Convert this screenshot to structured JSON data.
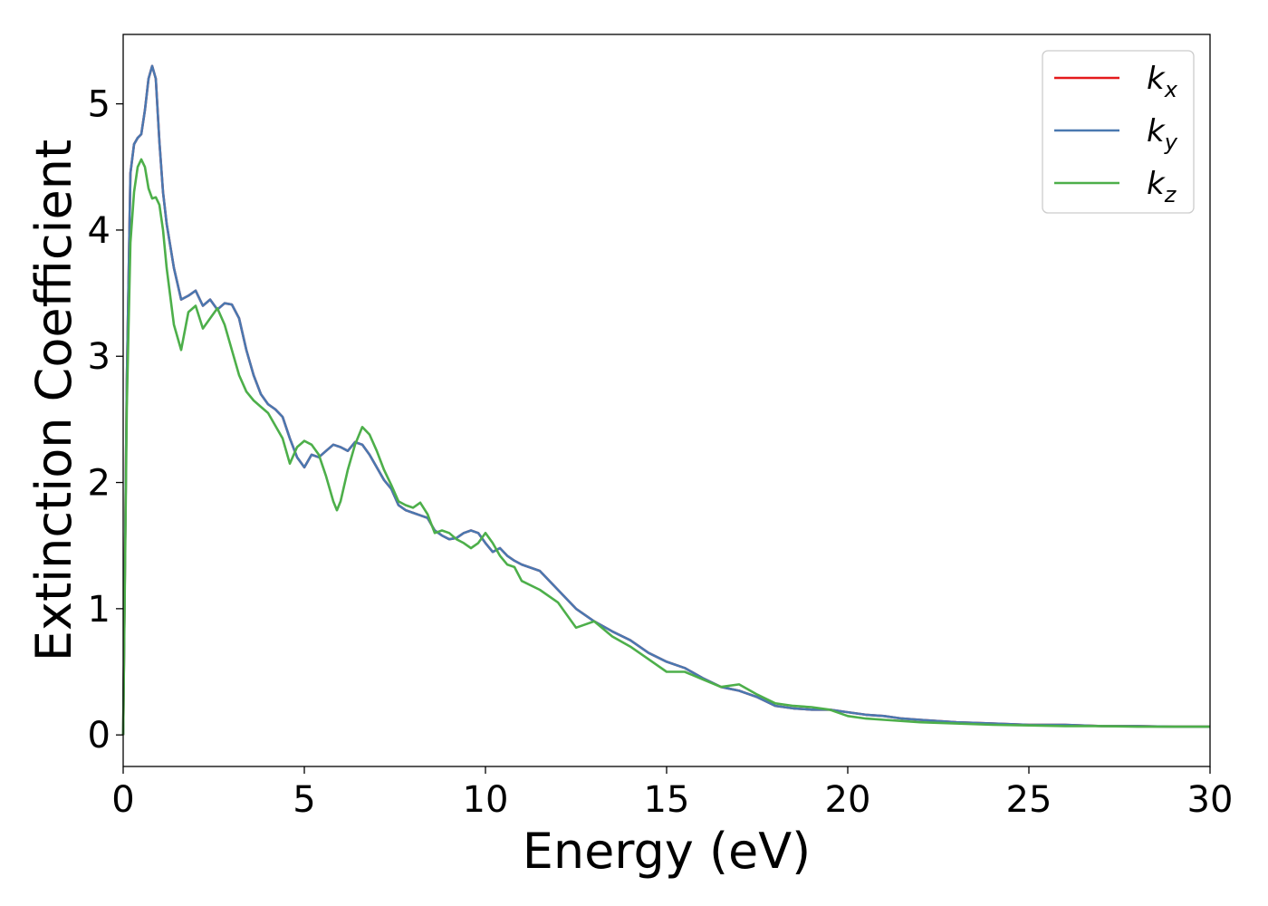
{
  "chart_data": {
    "type": "line",
    "title": "",
    "xlabel": "Energy (eV)",
    "ylabel": "Extinction Coefficient",
    "xlim": [
      0,
      30
    ],
    "ylim": [
      -0.25,
      5.55
    ],
    "xticks": [
      0,
      5,
      10,
      15,
      20,
      25,
      30
    ],
    "yticks": [
      0,
      1,
      2,
      3,
      4,
      5
    ],
    "grid": false,
    "legend_position": "top-right",
    "series": [
      {
        "name": "k",
        "subscript": "x",
        "color": "#e41a1c",
        "x": [
          0,
          0.1,
          0.2,
          0.3,
          0.4,
          0.5,
          0.6,
          0.7,
          0.8,
          0.9,
          1.0,
          1.1,
          1.2,
          1.4,
          1.6,
          1.8,
          2.0,
          2.2,
          2.4,
          2.6,
          2.8,
          3.0,
          3.2,
          3.4,
          3.6,
          3.8,
          4.0,
          4.2,
          4.4,
          4.6,
          4.8,
          5.0,
          5.2,
          5.4,
          5.6,
          5.8,
          6.0,
          6.2,
          6.4,
          6.6,
          6.8,
          7.0,
          7.2,
          7.4,
          7.6,
          7.8,
          8.0,
          8.2,
          8.4,
          8.6,
          8.8,
          9.0,
          9.2,
          9.4,
          9.6,
          9.8,
          10.0,
          10.2,
          10.4,
          10.6,
          10.8,
          11.0,
          11.5,
          12.0,
          12.5,
          13.0,
          13.5,
          14.0,
          14.5,
          15.0,
          15.5,
          16.0,
          16.5,
          17.0,
          17.5,
          18.0,
          18.5,
          19.0,
          19.5,
          20.0,
          20.5,
          21.0,
          21.5,
          22.0,
          23.0,
          24.0,
          25.0,
          26.0,
          27.0,
          28.0,
          29.0,
          30.0
        ],
        "y": [
          0.0,
          2.8,
          4.45,
          4.68,
          4.73,
          4.76,
          4.95,
          5.2,
          5.3,
          5.2,
          4.7,
          4.3,
          4.05,
          3.7,
          3.45,
          3.48,
          3.52,
          3.4,
          3.45,
          3.37,
          3.42,
          3.41,
          3.3,
          3.05,
          2.85,
          2.7,
          2.62,
          2.58,
          2.52,
          2.35,
          2.2,
          2.12,
          2.22,
          2.2,
          2.25,
          2.3,
          2.28,
          2.25,
          2.32,
          2.3,
          2.22,
          2.12,
          2.02,
          1.95,
          1.82,
          1.78,
          1.76,
          1.74,
          1.72,
          1.62,
          1.58,
          1.55,
          1.56,
          1.6,
          1.62,
          1.6,
          1.52,
          1.45,
          1.48,
          1.42,
          1.38,
          1.35,
          1.3,
          1.15,
          1.0,
          0.9,
          0.82,
          0.75,
          0.65,
          0.58,
          0.53,
          0.45,
          0.38,
          0.35,
          0.3,
          0.23,
          0.21,
          0.2,
          0.2,
          0.18,
          0.16,
          0.15,
          0.13,
          0.12,
          0.1,
          0.09,
          0.08,
          0.08,
          0.07,
          0.07,
          0.065,
          0.065
        ]
      },
      {
        "name": "k",
        "subscript": "y",
        "color": "#4a78b0",
        "x": [
          0,
          0.1,
          0.2,
          0.3,
          0.4,
          0.5,
          0.6,
          0.7,
          0.8,
          0.9,
          1.0,
          1.1,
          1.2,
          1.4,
          1.6,
          1.8,
          2.0,
          2.2,
          2.4,
          2.6,
          2.8,
          3.0,
          3.2,
          3.4,
          3.6,
          3.8,
          4.0,
          4.2,
          4.4,
          4.6,
          4.8,
          5.0,
          5.2,
          5.4,
          5.6,
          5.8,
          6.0,
          6.2,
          6.4,
          6.6,
          6.8,
          7.0,
          7.2,
          7.4,
          7.6,
          7.8,
          8.0,
          8.2,
          8.4,
          8.6,
          8.8,
          9.0,
          9.2,
          9.4,
          9.6,
          9.8,
          10.0,
          10.2,
          10.4,
          10.6,
          10.8,
          11.0,
          11.5,
          12.0,
          12.5,
          13.0,
          13.5,
          14.0,
          14.5,
          15.0,
          15.5,
          16.0,
          16.5,
          17.0,
          17.5,
          18.0,
          18.5,
          19.0,
          19.5,
          20.0,
          20.5,
          21.0,
          21.5,
          22.0,
          23.0,
          24.0,
          25.0,
          26.0,
          27.0,
          28.0,
          29.0,
          30.0
        ],
        "y": [
          0.0,
          2.8,
          4.45,
          4.68,
          4.73,
          4.76,
          4.95,
          5.2,
          5.3,
          5.2,
          4.7,
          4.3,
          4.05,
          3.7,
          3.45,
          3.48,
          3.52,
          3.4,
          3.45,
          3.37,
          3.42,
          3.41,
          3.3,
          3.05,
          2.85,
          2.7,
          2.62,
          2.58,
          2.52,
          2.35,
          2.2,
          2.12,
          2.22,
          2.2,
          2.25,
          2.3,
          2.28,
          2.25,
          2.32,
          2.3,
          2.22,
          2.12,
          2.02,
          1.95,
          1.82,
          1.78,
          1.76,
          1.74,
          1.72,
          1.62,
          1.58,
          1.55,
          1.56,
          1.6,
          1.62,
          1.6,
          1.52,
          1.45,
          1.48,
          1.42,
          1.38,
          1.35,
          1.3,
          1.15,
          1.0,
          0.9,
          0.82,
          0.75,
          0.65,
          0.58,
          0.53,
          0.45,
          0.38,
          0.35,
          0.3,
          0.23,
          0.21,
          0.2,
          0.2,
          0.18,
          0.16,
          0.15,
          0.13,
          0.12,
          0.1,
          0.09,
          0.08,
          0.08,
          0.07,
          0.07,
          0.065,
          0.065
        ]
      },
      {
        "name": "k",
        "subscript": "z",
        "color": "#4daf4a",
        "x": [
          0,
          0.1,
          0.2,
          0.3,
          0.4,
          0.5,
          0.6,
          0.7,
          0.8,
          0.9,
          1.0,
          1.1,
          1.2,
          1.4,
          1.6,
          1.8,
          2.0,
          2.2,
          2.4,
          2.6,
          2.8,
          3.0,
          3.2,
          3.4,
          3.6,
          3.8,
          4.0,
          4.2,
          4.4,
          4.6,
          4.8,
          5.0,
          5.2,
          5.4,
          5.6,
          5.8,
          5.9,
          6.0,
          6.2,
          6.4,
          6.6,
          6.8,
          7.0,
          7.2,
          7.4,
          7.6,
          7.8,
          8.0,
          8.2,
          8.4,
          8.6,
          8.8,
          9.0,
          9.2,
          9.4,
          9.6,
          9.8,
          10.0,
          10.2,
          10.4,
          10.6,
          10.8,
          11.0,
          11.5,
          12.0,
          12.5,
          13.0,
          13.5,
          14.0,
          14.5,
          15.0,
          15.5,
          16.0,
          16.5,
          17.0,
          17.5,
          18.0,
          18.5,
          19.0,
          19.5,
          20.0,
          20.5,
          21.0,
          21.5,
          22.0,
          23.0,
          24.0,
          25.0,
          26.0,
          27.0,
          28.0,
          29.0,
          30.0
        ],
        "y": [
          0.0,
          2.6,
          3.9,
          4.3,
          4.5,
          4.56,
          4.5,
          4.33,
          4.25,
          4.26,
          4.2,
          4.0,
          3.7,
          3.25,
          3.05,
          3.35,
          3.4,
          3.22,
          3.3,
          3.38,
          3.25,
          3.05,
          2.85,
          2.72,
          2.65,
          2.6,
          2.55,
          2.45,
          2.35,
          2.15,
          2.28,
          2.33,
          2.3,
          2.22,
          2.05,
          1.85,
          1.78,
          1.85,
          2.1,
          2.3,
          2.44,
          2.38,
          2.25,
          2.1,
          1.98,
          1.85,
          1.82,
          1.8,
          1.84,
          1.75,
          1.6,
          1.62,
          1.6,
          1.55,
          1.52,
          1.48,
          1.52,
          1.6,
          1.52,
          1.42,
          1.35,
          1.33,
          1.22,
          1.15,
          1.05,
          0.85,
          0.9,
          0.78,
          0.7,
          0.6,
          0.5,
          0.5,
          0.44,
          0.38,
          0.4,
          0.32,
          0.25,
          0.23,
          0.22,
          0.2,
          0.15,
          0.13,
          0.12,
          0.11,
          0.1,
          0.09,
          0.08,
          0.075,
          0.07,
          0.07,
          0.065,
          0.065,
          0.065
        ]
      }
    ]
  }
}
